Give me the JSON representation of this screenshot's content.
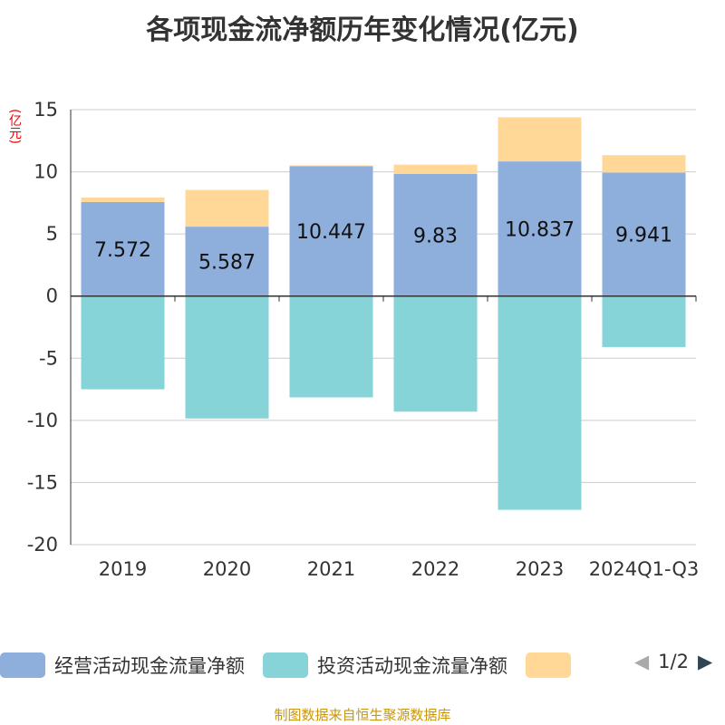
{
  "chart_data": {
    "type": "bar",
    "title": "各项现金流净额历年变化情况(亿元)",
    "ylabel": "(亿元)",
    "categories": [
      "2019",
      "2020",
      "2021",
      "2022",
      "2023",
      "2024Q1-Q3"
    ],
    "ylim": [
      -20,
      15
    ],
    "yticks": [
      "15",
      "10",
      "5",
      "0",
      "-5",
      "-10",
      "-15",
      "-20"
    ],
    "series": [
      {
        "name": "经营活动现金流量净额",
        "color": "#8eaedb",
        "values": [
          7.572,
          5.587,
          10.447,
          9.83,
          10.837,
          9.941
        ],
        "labels": [
          "7.572",
          "5.587",
          "10.447",
          "9.83",
          "10.837",
          "9.941"
        ]
      },
      {
        "name": "投资活动现金流量净额",
        "color": "#86d4d8",
        "values": [
          -7.5,
          -9.85,
          -8.15,
          -9.3,
          -17.2,
          -4.1
        ]
      },
      {
        "name": "",
        "color": "#ffd897",
        "values": [
          0.35,
          2.95,
          0.07,
          0.75,
          3.55,
          1.4
        ]
      }
    ]
  },
  "legend": {
    "page": "1/2"
  },
  "footer": "制图数据来自恒生聚源数据库"
}
